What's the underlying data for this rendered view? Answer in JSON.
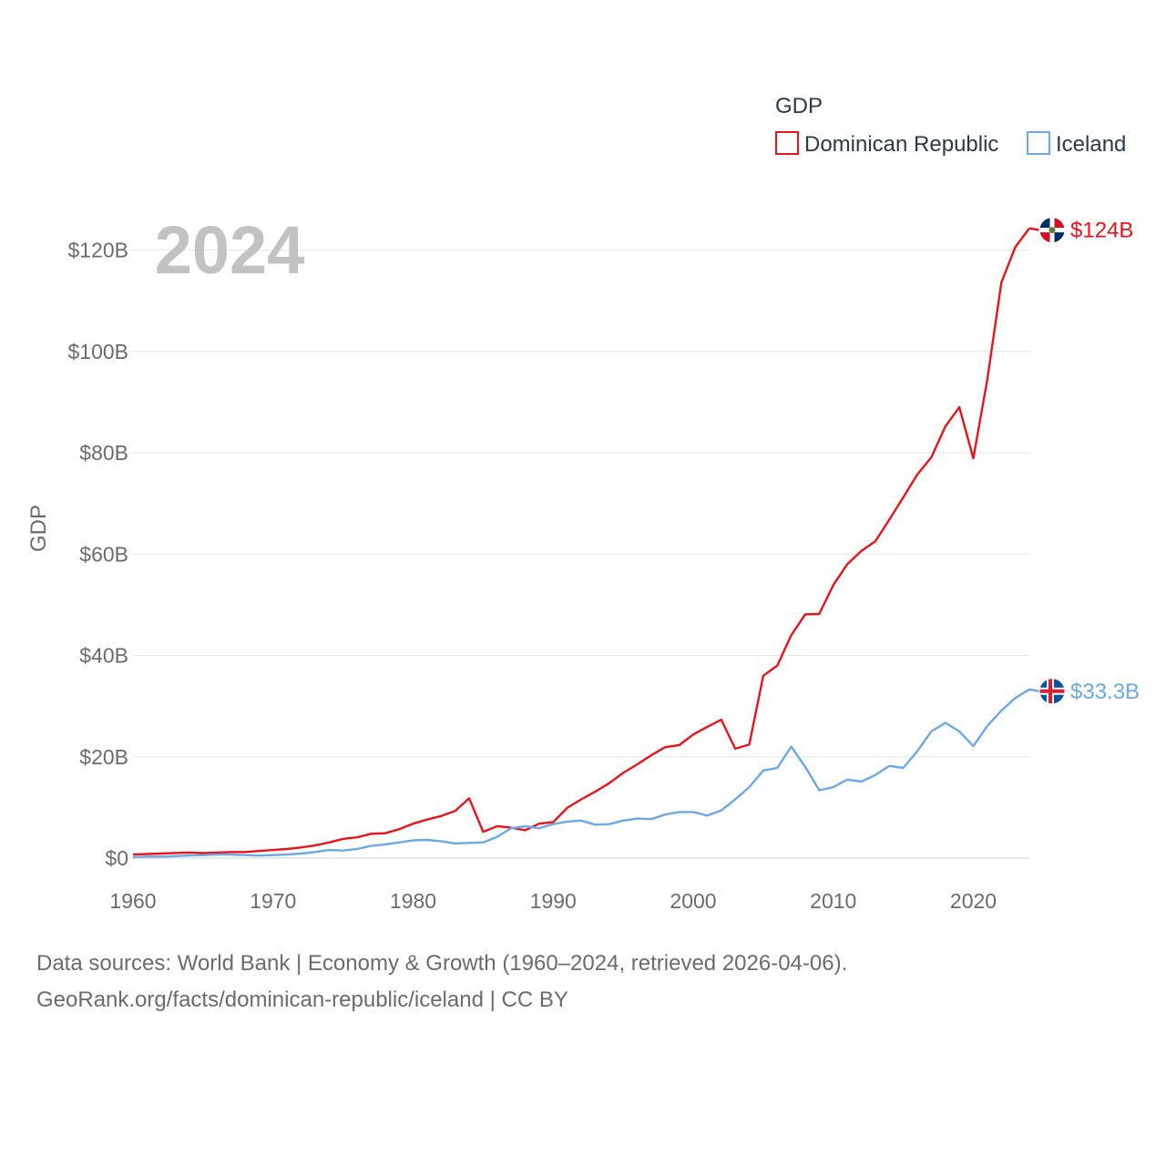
{
  "chart_data": {
    "type": "line",
    "year_label": "2024",
    "ylabel": "GDP",
    "xlabel": "",
    "legend": {
      "title": "GDP",
      "placement": "top-right"
    },
    "xlim": [
      1960,
      2024
    ],
    "ylim": [
      0,
      130
    ],
    "x_ticks": [
      1960,
      1970,
      1980,
      1990,
      2000,
      2010,
      2020
    ],
    "y_ticks": [
      {
        "value": 0,
        "label": "$0"
      },
      {
        "value": 20,
        "label": "$20B"
      },
      {
        "value": 40,
        "label": "$40B"
      },
      {
        "value": 60,
        "label": "$60B"
      },
      {
        "value": 80,
        "label": "$80B"
      },
      {
        "value": 100,
        "label": "$100B"
      },
      {
        "value": 120,
        "label": "$120B"
      }
    ],
    "grid": true,
    "units": "billion USD",
    "series": [
      {
        "name": "Dominican Republic",
        "color": "#e8141c",
        "end_label": "$124B",
        "flag": "dominican-republic",
        "x_start": 1960,
        "values": [
          0.7,
          0.8,
          0.9,
          1.0,
          1.1,
          1.0,
          1.1,
          1.2,
          1.2,
          1.4,
          1.6,
          1.8,
          2.1,
          2.5,
          3.1,
          3.8,
          4.1,
          4.8,
          4.9,
          5.7,
          6.8,
          7.6,
          8.3,
          9.3,
          11.8,
          5.2,
          6.3,
          6.0,
          5.5,
          6.8,
          7.1,
          9.9,
          11.6,
          13.1,
          14.8,
          16.8,
          18.5,
          20.3,
          21.9,
          22.3,
          24.4,
          25.9,
          27.3,
          21.6,
          22.4,
          36.0,
          38.0,
          44.0,
          48.1,
          48.2,
          53.9,
          58.0,
          60.6,
          62.5,
          66.8,
          71.2,
          75.7,
          79.1,
          85.2,
          89.0,
          78.9,
          94.5,
          113.6,
          120.6,
          124.3
        ]
      },
      {
        "name": "Iceland",
        "color": "#6da8e4",
        "end_label": "$33.3B",
        "flag": "iceland",
        "x_start": 1960,
        "values": [
          0.2,
          0.3,
          0.3,
          0.4,
          0.5,
          0.6,
          0.7,
          0.7,
          0.6,
          0.5,
          0.6,
          0.7,
          0.9,
          1.2,
          1.6,
          1.5,
          1.8,
          2.4,
          2.7,
          3.1,
          3.5,
          3.6,
          3.3,
          2.9,
          3.0,
          3.1,
          4.2,
          5.9,
          6.3,
          5.9,
          6.7,
          7.2,
          7.4,
          6.6,
          6.7,
          7.4,
          7.8,
          7.7,
          8.6,
          9.1,
          9.1,
          8.4,
          9.4,
          11.6,
          14.0,
          17.3,
          17.8,
          22.0,
          18.0,
          13.4,
          14.0,
          15.5,
          15.1,
          16.4,
          18.2,
          17.8,
          21.1,
          25.0,
          26.7,
          25.0,
          22.1,
          26.1,
          29.1,
          31.6,
          33.3
        ]
      }
    ]
  },
  "footer": {
    "sources_line": "Data sources: World Bank | Economy & Growth (1960–2024, retrieved 2026-04-06).",
    "url_line": "GeoRank.org/facts/dominican-republic/iceland | CC BY"
  }
}
